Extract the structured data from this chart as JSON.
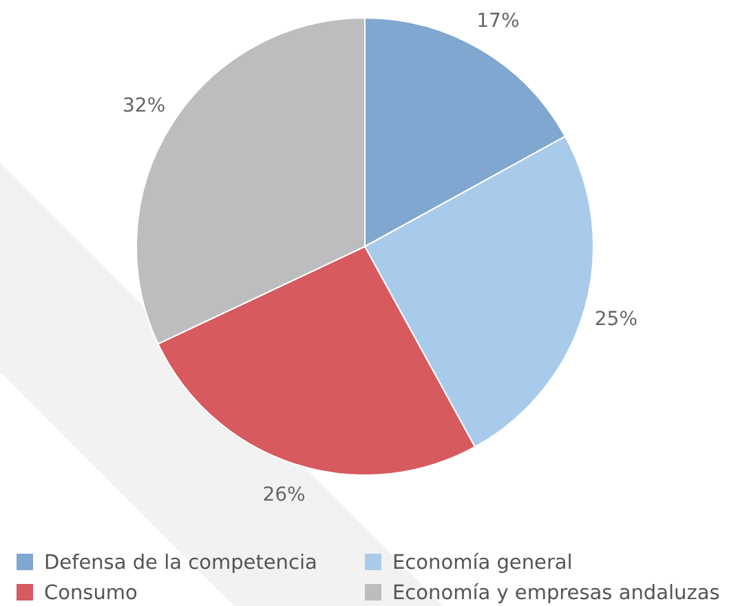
{
  "chart_data": {
    "type": "pie",
    "categories": [
      "Defensa de la competencia",
      "Economía general",
      "Consumo",
      "Economía y empresas andaluzas"
    ],
    "values": [
      17,
      25,
      26,
      32
    ],
    "colors": [
      "#7fa7cf",
      "#a9cbeb",
      "#d65a5e",
      "#bdbdc0"
    ],
    "value_labels": [
      "17%",
      "25%",
      "26%",
      "32%"
    ],
    "legend": "bottom"
  }
}
